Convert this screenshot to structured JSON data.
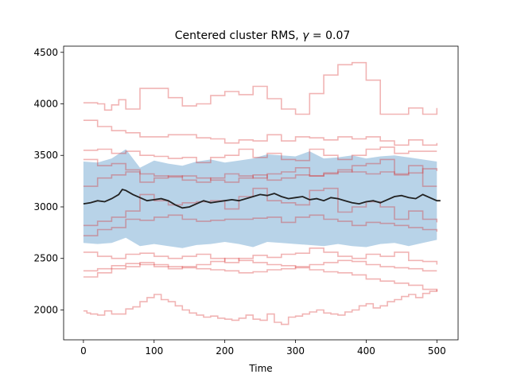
{
  "chart_data": {
    "type": "line",
    "title": "Centered cluster RMS, ",
    "title_math_symbol": "γ",
    "title_math_value": " = 0.07",
    "xlabel": "Time",
    "ylabel": "",
    "xlim": [
      -28,
      530
    ],
    "ylim": [
      1710,
      4560
    ],
    "xticks": [
      0,
      100,
      200,
      300,
      400,
      500
    ],
    "yticks": [
      2000,
      2500,
      3000,
      3500,
      4000,
      4500
    ],
    "grid": false,
    "band": {
      "color": "#a6c8e2",
      "x": [
        0,
        20,
        40,
        60,
        80,
        100,
        120,
        140,
        160,
        180,
        200,
        220,
        240,
        260,
        280,
        300,
        320,
        340,
        360,
        380,
        400,
        420,
        440,
        460,
        480,
        500
      ],
      "upper": [
        3440,
        3430,
        3470,
        3560,
        3380,
        3450,
        3420,
        3400,
        3440,
        3460,
        3430,
        3450,
        3470,
        3510,
        3500,
        3490,
        3540,
        3470,
        3480,
        3500,
        3470,
        3490,
        3500,
        3480,
        3460,
        3440
      ],
      "lower": [
        2650,
        2640,
        2650,
        2700,
        2620,
        2640,
        2620,
        2600,
        2630,
        2640,
        2660,
        2640,
        2610,
        2660,
        2650,
        2640,
        2630,
        2620,
        2640,
        2620,
        2610,
        2640,
        2650,
        2620,
        2650,
        2680
      ]
    },
    "mean": {
      "color": "#222222",
      "x": [
        0,
        10,
        20,
        30,
        40,
        50,
        55,
        60,
        70,
        80,
        90,
        100,
        110,
        120,
        130,
        140,
        150,
        160,
        170,
        180,
        190,
        200,
        210,
        220,
        230,
        240,
        250,
        260,
        270,
        280,
        290,
        300,
        310,
        320,
        330,
        340,
        350,
        360,
        370,
        380,
        390,
        400,
        410,
        420,
        430,
        440,
        450,
        460,
        470,
        480,
        490,
        500,
        505
      ],
      "y": [
        3030,
        3040,
        3060,
        3050,
        3080,
        3120,
        3170,
        3160,
        3120,
        3090,
        3060,
        3070,
        3080,
        3060,
        3020,
        2990,
        3000,
        3030,
        3060,
        3040,
        3050,
        3060,
        3070,
        3060,
        3080,
        3100,
        3120,
        3110,
        3130,
        3100,
        3080,
        3090,
        3100,
        3070,
        3080,
        3060,
        3090,
        3080,
        3060,
        3040,
        3030,
        3050,
        3060,
        3040,
        3070,
        3100,
        3110,
        3090,
        3080,
        3120,
        3090,
        3060,
        3060
      ]
    },
    "trajectories_color": "#d62728",
    "trajectories": [
      {
        "x": [
          0,
          5,
          10,
          20,
          30,
          40,
          50,
          60,
          70,
          80,
          90,
          100,
          110,
          120,
          130,
          140,
          150,
          160,
          170,
          180,
          190,
          200,
          210,
          220,
          230,
          240,
          250,
          260,
          270,
          280,
          290,
          300,
          310,
          320,
          330,
          340,
          350,
          360,
          370,
          380,
          390,
          400,
          410,
          420,
          430,
          440,
          450,
          460,
          470,
          480,
          490,
          500
        ],
        "y": [
          1990,
          1970,
          1960,
          1950,
          1990,
          1960,
          1960,
          2010,
          2030,
          2080,
          2120,
          2150,
          2100,
          2080,
          2040,
          2000,
          1970,
          1950,
          1930,
          1940,
          1920,
          1910,
          1900,
          1920,
          1950,
          1910,
          1900,
          1960,
          1880,
          1860,
          1930,
          1940,
          1960,
          1980,
          2000,
          1970,
          1960,
          1950,
          1980,
          2000,
          2040,
          2060,
          2020,
          2040,
          2080,
          2100,
          2130,
          2150,
          2120,
          2160,
          2180,
          2200
        ]
      },
      {
        "x": [
          0,
          20,
          30,
          40,
          50,
          60,
          80,
          100,
          120,
          140,
          160,
          180,
          200,
          220,
          240,
          260,
          280,
          300,
          320,
          340,
          360,
          380,
          400,
          420,
          440,
          460,
          480,
          500
        ],
        "y": [
          4010,
          4000,
          3940,
          3990,
          4040,
          3950,
          4150,
          4150,
          4060,
          3980,
          4000,
          4080,
          4120,
          4090,
          4170,
          4050,
          3950,
          3900,
          4100,
          4280,
          4380,
          4400,
          4230,
          3900,
          3900,
          3960,
          3900,
          3960
        ]
      },
      {
        "x": [
          0,
          20,
          40,
          60,
          80,
          100,
          120,
          140,
          160,
          180,
          200,
          220,
          240,
          260,
          280,
          300,
          320,
          340,
          360,
          380,
          400,
          420,
          440,
          460,
          480,
          500
        ],
        "y": [
          3840,
          3780,
          3740,
          3720,
          3680,
          3680,
          3700,
          3700,
          3670,
          3660,
          3620,
          3650,
          3640,
          3700,
          3640,
          3680,
          3670,
          3650,
          3680,
          3660,
          3680,
          3640,
          3600,
          3650,
          3600,
          3620
        ]
      },
      {
        "x": [
          0,
          20,
          40,
          60,
          80,
          100,
          120,
          140,
          160,
          180,
          200,
          220,
          240,
          260,
          280,
          300,
          320,
          340,
          360,
          380,
          400,
          420,
          440,
          460,
          480,
          500
        ],
        "y": [
          3550,
          3560,
          3520,
          3540,
          3500,
          3490,
          3470,
          3480,
          3430,
          3480,
          3500,
          3560,
          3480,
          3520,
          3460,
          3450,
          3560,
          3500,
          3460,
          3500,
          3560,
          3580,
          3520,
          3540,
          3540,
          3540
        ]
      },
      {
        "x": [
          0,
          20,
          40,
          60,
          80,
          100,
          120,
          140,
          160,
          180,
          200,
          220,
          240,
          260,
          280,
          300,
          320,
          340,
          360,
          380,
          400,
          420,
          440,
          460,
          480,
          500
        ],
        "y": [
          3200,
          3280,
          3310,
          3340,
          3320,
          3300,
          3290,
          3300,
          3280,
          3260,
          3240,
          3280,
          3310,
          3260,
          3280,
          3310,
          3300,
          3330,
          3360,
          3340,
          3320,
          3340,
          3310,
          3330,
          3370,
          3350
        ]
      },
      {
        "x": [
          0,
          20,
          40,
          60,
          80,
          100,
          120,
          140,
          160,
          180,
          200,
          220,
          240,
          260,
          280,
          300,
          320,
          340,
          360,
          380,
          400,
          420,
          440,
          460,
          480,
          500
        ],
        "y": [
          2820,
          2860,
          2900,
          2960,
          3120,
          3060,
          3020,
          3040,
          3050,
          3060,
          2980,
          3100,
          3180,
          3060,
          3040,
          3020,
          3160,
          3180,
          2950,
          3000,
          3050,
          3000,
          2880,
          2960,
          2880,
          2850
        ]
      },
      {
        "x": [
          0,
          20,
          40,
          60,
          80,
          100,
          120,
          140,
          160,
          180,
          200,
          220,
          240,
          260,
          280,
          300,
          320,
          340,
          360,
          380,
          400,
          420,
          440,
          460,
          480,
          500
        ],
        "y": [
          2720,
          2780,
          2800,
          2880,
          2870,
          2900,
          2920,
          2880,
          2860,
          2870,
          2880,
          2880,
          2890,
          2900,
          2850,
          2900,
          2920,
          2880,
          2860,
          2820,
          2850,
          2840,
          2820,
          2800,
          2780,
          2760
        ]
      },
      {
        "x": [
          0,
          20,
          40,
          60,
          80,
          100,
          120,
          140,
          160,
          180,
          200,
          220,
          240,
          260,
          280,
          300,
          320,
          340,
          360,
          380,
          400,
          420,
          440,
          460,
          480,
          500
        ],
        "y": [
          2560,
          2520,
          2500,
          2540,
          2550,
          2520,
          2500,
          2520,
          2540,
          2500,
          2460,
          2500,
          2530,
          2510,
          2540,
          2550,
          2600,
          2560,
          2520,
          2500,
          2540,
          2520,
          2560,
          2480,
          2470,
          2440
        ]
      },
      {
        "x": [
          0,
          20,
          40,
          60,
          80,
          100,
          120,
          140,
          160,
          180,
          200,
          220,
          240,
          260,
          280,
          300,
          320,
          340,
          360,
          380,
          400,
          420,
          440,
          460,
          480,
          500
        ],
        "y": [
          2320,
          2360,
          2400,
          2420,
          2460,
          2440,
          2420,
          2410,
          2400,
          2390,
          2380,
          2360,
          2370,
          2390,
          2400,
          2420,
          2440,
          2460,
          2480,
          2470,
          2440,
          2420,
          2410,
          2400,
          2380,
          2380
        ]
      },
      {
        "x": [
          0,
          20,
          40,
          60,
          80,
          100,
          120,
          140,
          160,
          180,
          200,
          220,
          240,
          260,
          280,
          300,
          320,
          340,
          360,
          380,
          400,
          420,
          440,
          460,
          480,
          500
        ],
        "y": [
          2380,
          2400,
          2430,
          2450,
          2440,
          2420,
          2400,
          2420,
          2440,
          2470,
          2500,
          2480,
          2460,
          2440,
          2430,
          2410,
          2390,
          2370,
          2360,
          2340,
          2300,
          2280,
          2260,
          2240,
          2200,
          2180
        ]
      },
      {
        "x": [
          0,
          20,
          40,
          60,
          80,
          100,
          120,
          140,
          160,
          180,
          200,
          220,
          240,
          260,
          280,
          300,
          320,
          340,
          360,
          380,
          400,
          420,
          440,
          460,
          480,
          500
        ],
        "y": [
          3460,
          3400,
          3420,
          3360,
          3240,
          3280,
          3300,
          3260,
          3240,
          3280,
          3320,
          3300,
          3280,
          3320,
          3340,
          3380,
          3300,
          3320,
          3340,
          3400,
          3420,
          3460,
          3320,
          3400,
          3200,
          3200
        ]
      }
    ]
  }
}
